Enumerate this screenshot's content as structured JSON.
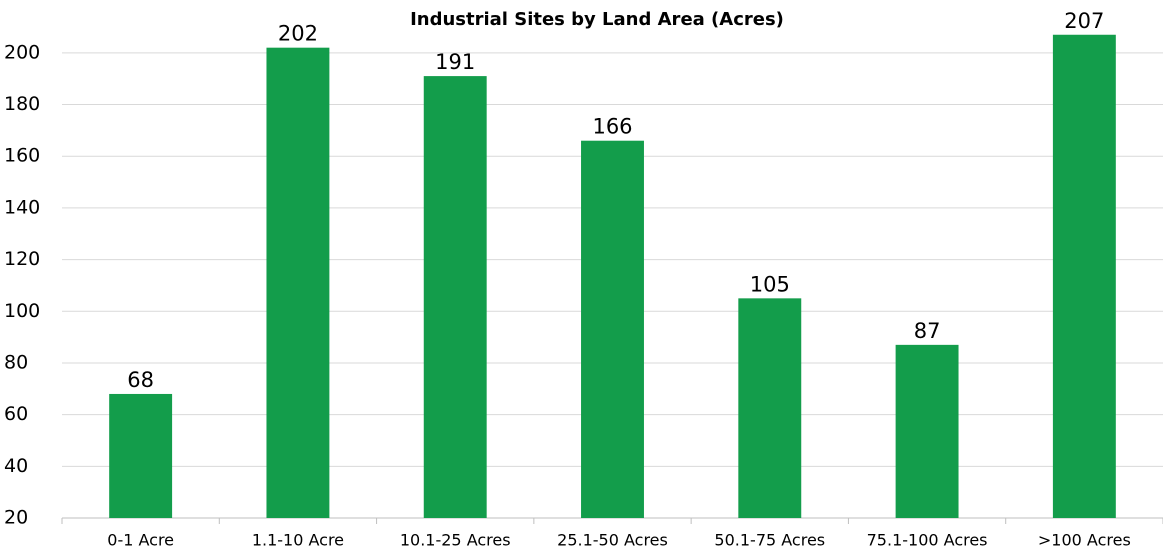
{
  "chart_data": {
    "type": "bar",
    "title": "Industrial Sites by Land Area (Acres)",
    "categories": [
      "0-1 Acre",
      "1.1-10 Acre",
      "10.1-25 Acres",
      "25.1-50 Acres",
      "50.1-75 Acres",
      "75.1-100 Acres",
      ">100 Acres"
    ],
    "values": [
      68,
      202,
      191,
      166,
      105,
      87,
      207
    ],
    "color": "#139d4b",
    "ylim": [
      20,
      210
    ],
    "yticks": [
      20,
      40,
      60,
      80,
      100,
      120,
      140,
      160,
      180,
      200
    ],
    "grid": true
  }
}
